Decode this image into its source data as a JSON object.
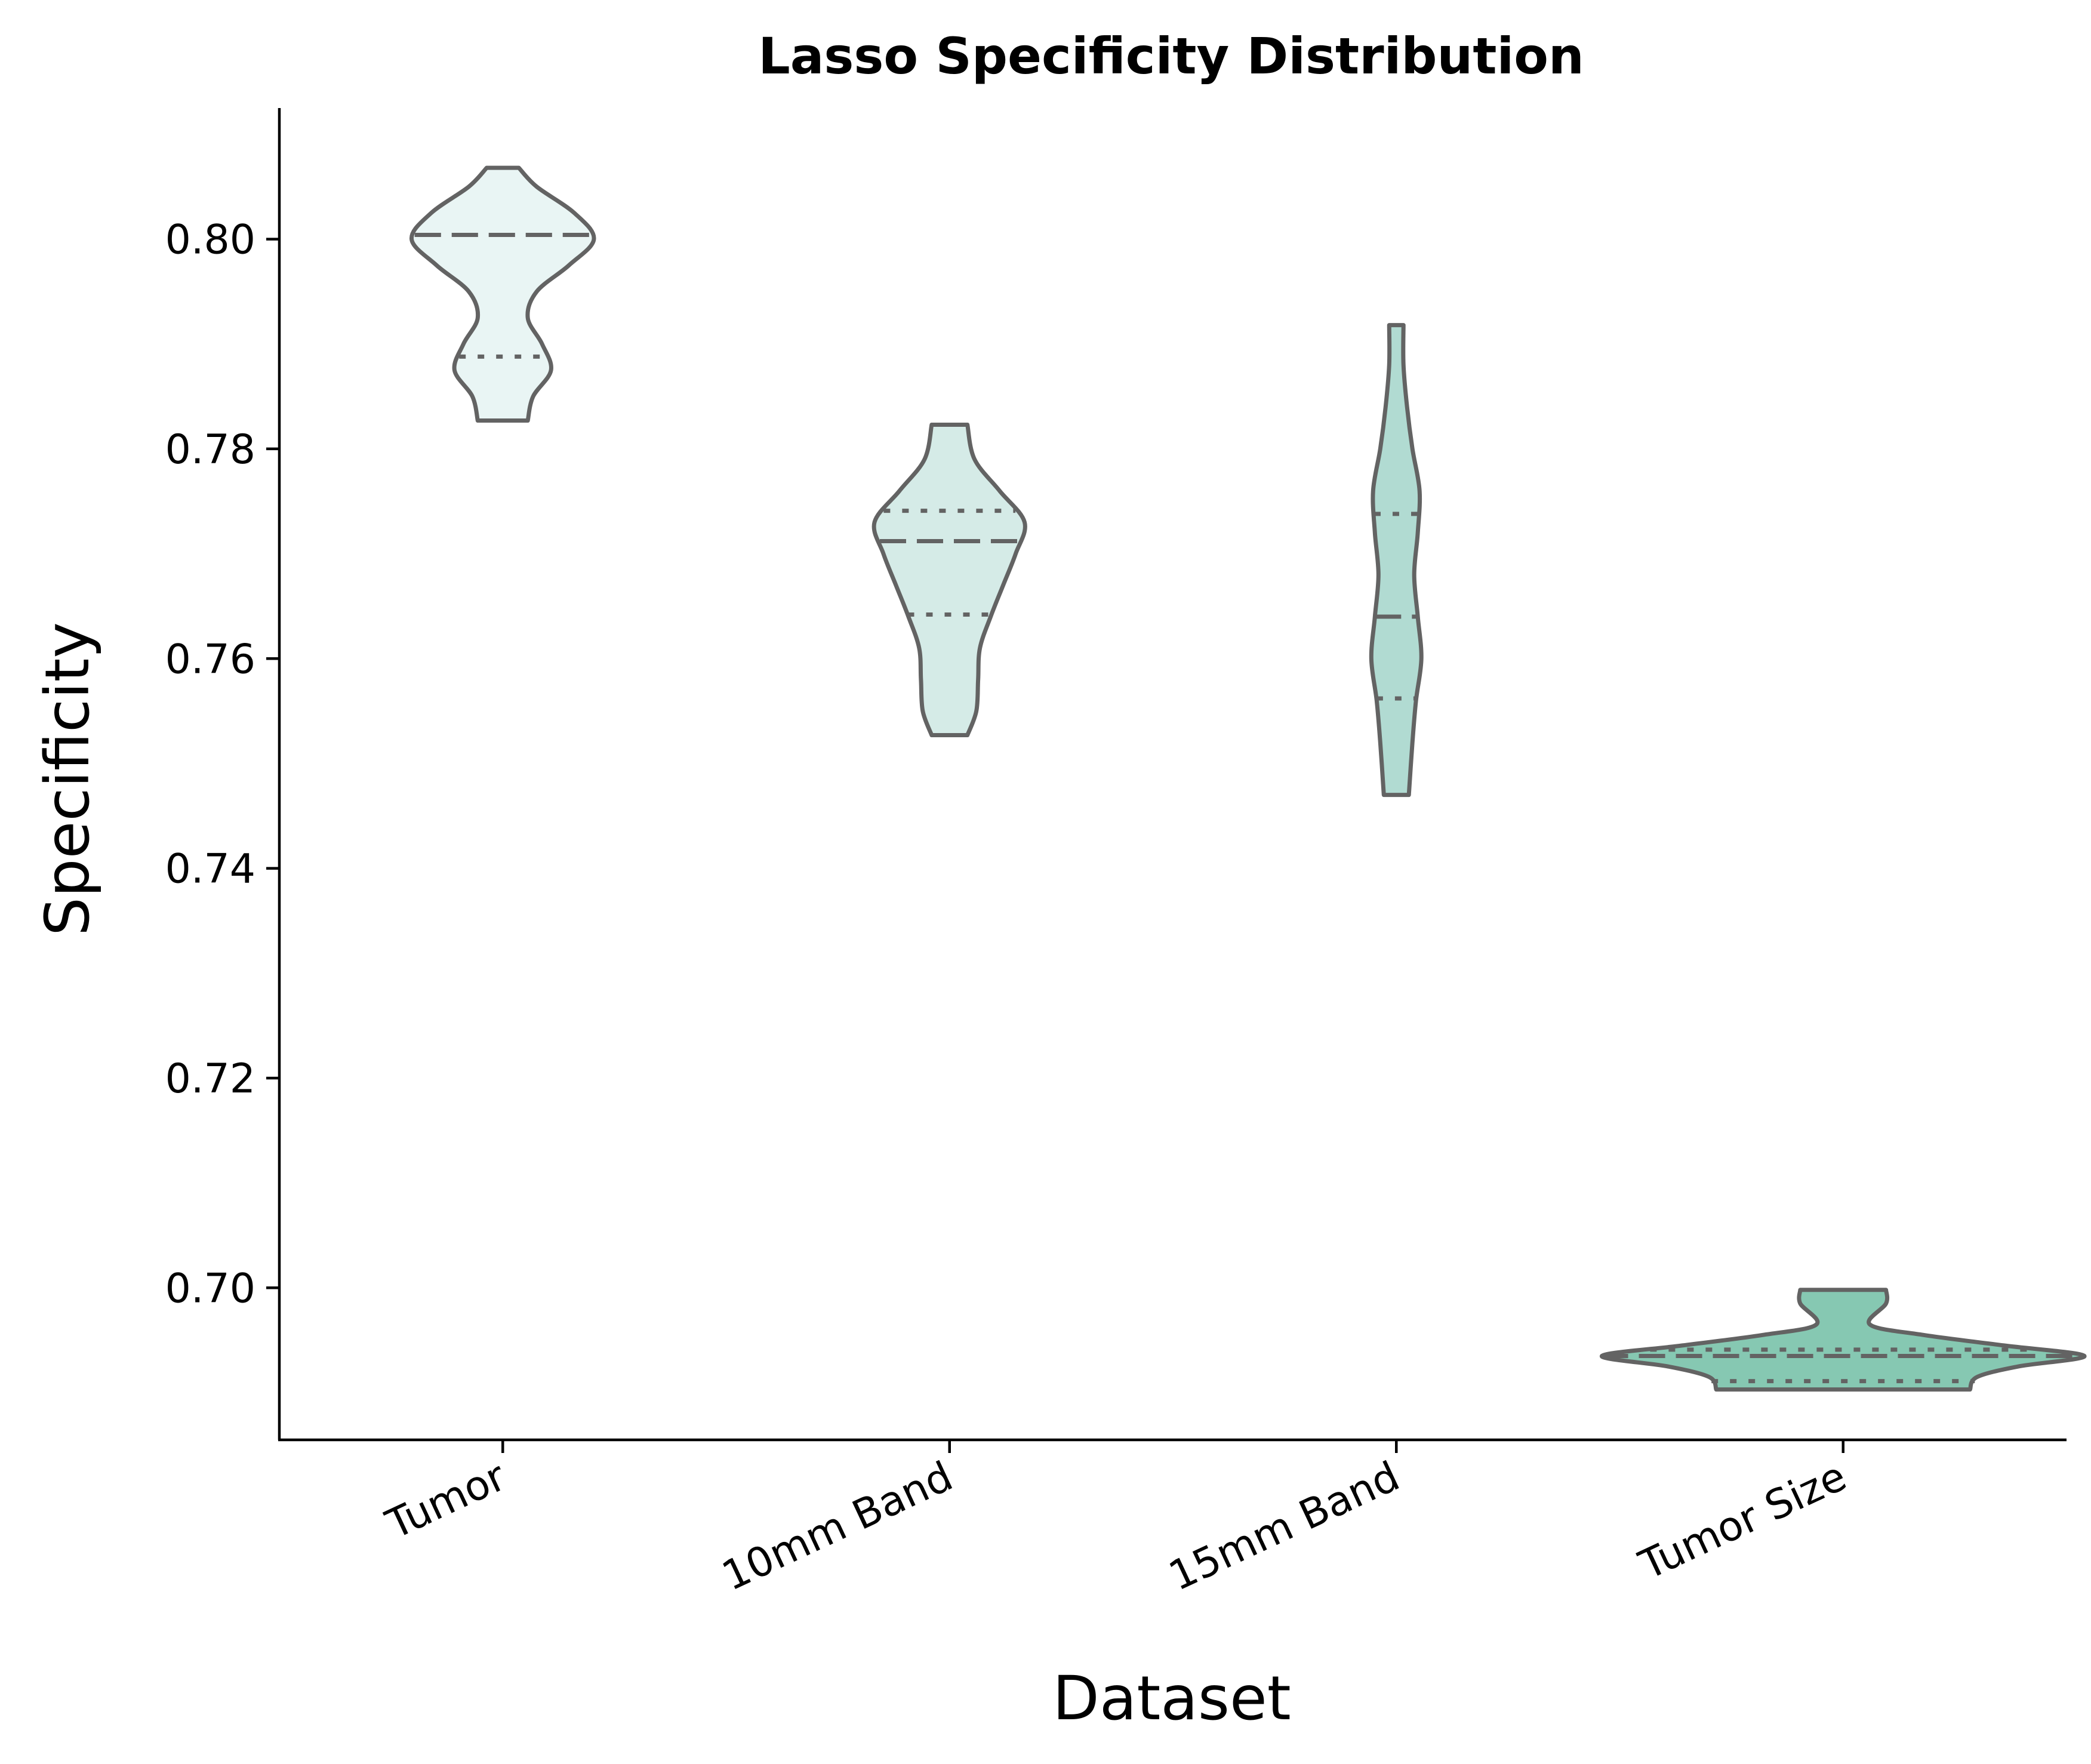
{
  "chart_data": {
    "type": "violin",
    "title": "Lasso Specificity Distribution",
    "xlabel": "Dataset",
    "ylabel": "Specificity",
    "ylim": [
      0.6855,
      0.8125
    ],
    "yticks": [
      0.7,
      0.72,
      0.74,
      0.76,
      0.78,
      0.8
    ],
    "yticklabels": [
      "0.70",
      "0.72",
      "0.74",
      "0.76",
      "0.78",
      "0.80"
    ],
    "categories": [
      "Tumor",
      "10mm Band",
      "15mm Band",
      "Tumor Size"
    ],
    "grid": false,
    "inner": "quartile",
    "series": [
      {
        "category": "Tumor",
        "color": "#e9f5f4",
        "q1": 0.7888,
        "median": 0.8004,
        "q3": 0.8004,
        "profile": [
          [
            0.7827,
            0.14
          ],
          [
            0.785,
            0.17
          ],
          [
            0.7875,
            0.27
          ],
          [
            0.79,
            0.22
          ],
          [
            0.7925,
            0.14
          ],
          [
            0.795,
            0.19
          ],
          [
            0.7975,
            0.37
          ],
          [
            0.8,
            0.51
          ],
          [
            0.8025,
            0.4
          ],
          [
            0.805,
            0.19
          ],
          [
            0.8068,
            0.09
          ]
        ]
      },
      {
        "category": "10mm Band",
        "color": "#d5ebe7",
        "q1": 0.7642,
        "median": 0.7712,
        "q3": 0.7741,
        "profile": [
          [
            0.7527,
            0.1
          ],
          [
            0.755,
            0.15
          ],
          [
            0.758,
            0.16
          ],
          [
            0.761,
            0.17
          ],
          [
            0.764,
            0.23
          ],
          [
            0.767,
            0.3
          ],
          [
            0.77,
            0.37
          ],
          [
            0.773,
            0.42
          ],
          [
            0.776,
            0.28
          ],
          [
            0.779,
            0.14
          ],
          [
            0.7823,
            0.1
          ]
        ]
      },
      {
        "category": "15mm Band",
        "color": "#b1dbd2",
        "q1": 0.7562,
        "median": 0.764,
        "q3": 0.7738,
        "profile": [
          [
            0.747,
            0.07
          ],
          [
            0.752,
            0.09
          ],
          [
            0.756,
            0.11
          ],
          [
            0.76,
            0.14
          ],
          [
            0.764,
            0.12
          ],
          [
            0.768,
            0.1
          ],
          [
            0.772,
            0.12
          ],
          [
            0.776,
            0.13
          ],
          [
            0.78,
            0.09
          ],
          [
            0.784,
            0.06
          ],
          [
            0.788,
            0.04
          ],
          [
            0.7918,
            0.04
          ]
        ]
      },
      {
        "category": "Tumor Size",
        "color": "#86c8b2",
        "q1": 0.6911,
        "median": 0.6935,
        "q3": 0.6941,
        "profile": [
          [
            0.6903,
            0.71
          ],
          [
            0.6915,
            0.75
          ],
          [
            0.6925,
            0.98
          ],
          [
            0.6935,
            1.35
          ],
          [
            0.6945,
            0.9
          ],
          [
            0.6955,
            0.45
          ],
          [
            0.6965,
            0.15
          ],
          [
            0.6985,
            0.24
          ],
          [
            0.6998,
            0.24
          ]
        ]
      }
    ]
  }
}
